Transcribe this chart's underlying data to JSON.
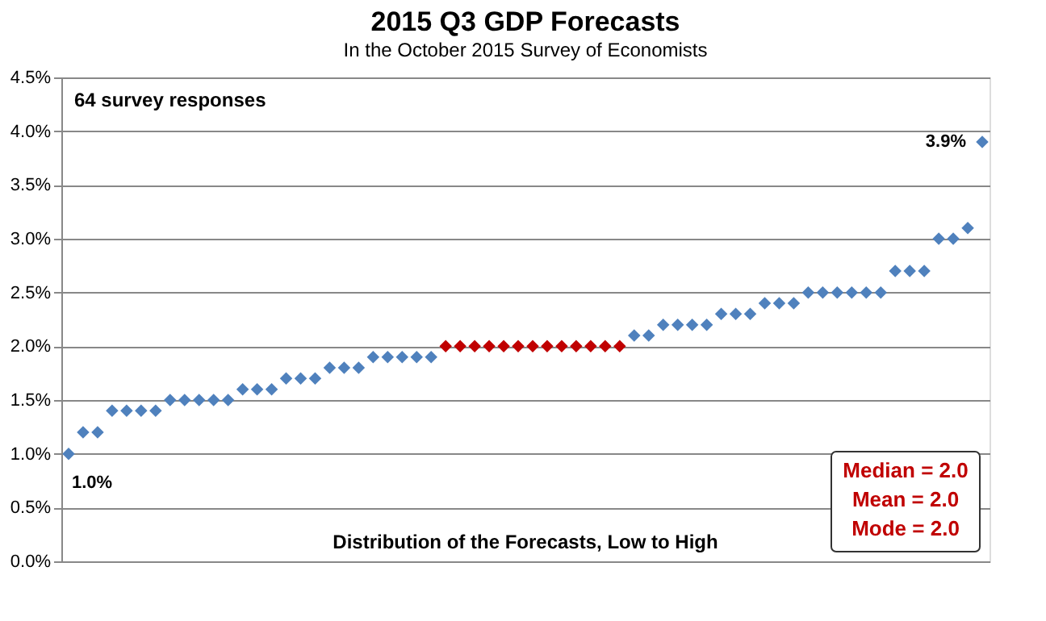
{
  "chart_data": {
    "type": "scatter",
    "title": "2015 Q3 GDP Forecasts",
    "subtitle": "In the October 2015 Survey of Economists",
    "xlabel": "Distribution of the Forecasts, Low to High",
    "categories": [
      null,
      null,
      null,
      null,
      null,
      null,
      null,
      null,
      null,
      null,
      null,
      null,
      null,
      null,
      null,
      null,
      null,
      null,
      null,
      null,
      null,
      null,
      null,
      null,
      null,
      null,
      null,
      null,
      null,
      null,
      null,
      null,
      null,
      null,
      null,
      null,
      null,
      null,
      null,
      null,
      null,
      null,
      null,
      null,
      null,
      null,
      null,
      null,
      null,
      null,
      null,
      null,
      null,
      null,
      null,
      null,
      null,
      null,
      null,
      null,
      null,
      null,
      null,
      null
    ],
    "values": [
      1.0,
      1.2,
      1.2,
      1.4,
      1.4,
      1.4,
      1.4,
      1.5,
      1.5,
      1.5,
      1.5,
      1.5,
      1.6,
      1.6,
      1.6,
      1.7,
      1.7,
      1.7,
      1.8,
      1.8,
      1.8,
      1.9,
      1.9,
      1.9,
      1.9,
      1.9,
      2.0,
      2.0,
      2.0,
      2.0,
      2.0,
      2.0,
      2.0,
      2.0,
      2.0,
      2.0,
      2.0,
      2.0,
      2.0,
      2.1,
      2.1,
      2.2,
      2.2,
      2.2,
      2.2,
      2.3,
      2.3,
      2.3,
      2.4,
      2.4,
      2.4,
      2.5,
      2.5,
      2.5,
      2.5,
      2.5,
      2.5,
      2.7,
      2.7,
      2.7,
      3.0,
      3.0,
      3.1,
      3.9
    ],
    "colors": [
      "#4f81bd",
      "#4f81bd",
      "#4f81bd",
      "#4f81bd",
      "#4f81bd",
      "#4f81bd",
      "#4f81bd",
      "#4f81bd",
      "#4f81bd",
      "#4f81bd",
      "#4f81bd",
      "#4f81bd",
      "#4f81bd",
      "#4f81bd",
      "#4f81bd",
      "#4f81bd",
      "#4f81bd",
      "#4f81bd",
      "#4f81bd",
      "#4f81bd",
      "#4f81bd",
      "#4f81bd",
      "#4f81bd",
      "#4f81bd",
      "#4f81bd",
      "#4f81bd",
      "#c00000",
      "#c00000",
      "#c00000",
      "#c00000",
      "#c00000",
      "#c00000",
      "#c00000",
      "#c00000",
      "#c00000",
      "#c00000",
      "#c00000",
      "#c00000",
      "#c00000",
      "#4f81bd",
      "#4f81bd",
      "#4f81bd",
      "#4f81bd",
      "#4f81bd",
      "#4f81bd",
      "#4f81bd",
      "#4f81bd",
      "#4f81bd",
      "#4f81bd",
      "#4f81bd",
      "#4f81bd",
      "#4f81bd",
      "#4f81bd",
      "#4f81bd",
      "#4f81bd",
      "#4f81bd",
      "#4f81bd",
      "#4f81bd",
      "#4f81bd",
      "#4f81bd",
      "#4f81bd",
      "#4f81bd",
      "#4f81bd",
      "#4f81bd"
    ],
    "value_labels": [
      "1.0%",
      null,
      null,
      null,
      null,
      null,
      null,
      null,
      null,
      null,
      null,
      null,
      null,
      null,
      null,
      null,
      null,
      null,
      null,
      null,
      null,
      null,
      null,
      null,
      null,
      null,
      null,
      null,
      null,
      null,
      null,
      null,
      null,
      null,
      null,
      null,
      null,
      null,
      null,
      null,
      null,
      null,
      null,
      null,
      null,
      null,
      null,
      null,
      null,
      null,
      null,
      null,
      null,
      null,
      null,
      null,
      null,
      null,
      null,
      null,
      null,
      null,
      null,
      "3.9%"
    ],
    "ylim": [
      0,
      4.5
    ],
    "yticks": [
      {
        "value": 0,
        "label": "0.0%"
      },
      {
        "value": 0.5,
        "label": "0.5%"
      },
      {
        "value": 1,
        "label": "1.0%"
      },
      {
        "value": 1.5,
        "label": "1.5%"
      },
      {
        "value": 2,
        "label": "2.0%"
      },
      {
        "value": 2.5,
        "label": "2.5%"
      },
      {
        "value": 3,
        "label": "3.0%"
      },
      {
        "value": 3.5,
        "label": "3.5%"
      },
      {
        "value": 4,
        "label": "4.0%"
      },
      {
        "value": 4.5,
        "label": "4.5%"
      }
    ],
    "annotations": [
      "64 survey responses",
      "Median = 2.0",
      "Mean = 2.0",
      "Mode = 2.0"
    ],
    "grid": "y",
    "marker": "diamond",
    "tick_labels": "y"
  }
}
